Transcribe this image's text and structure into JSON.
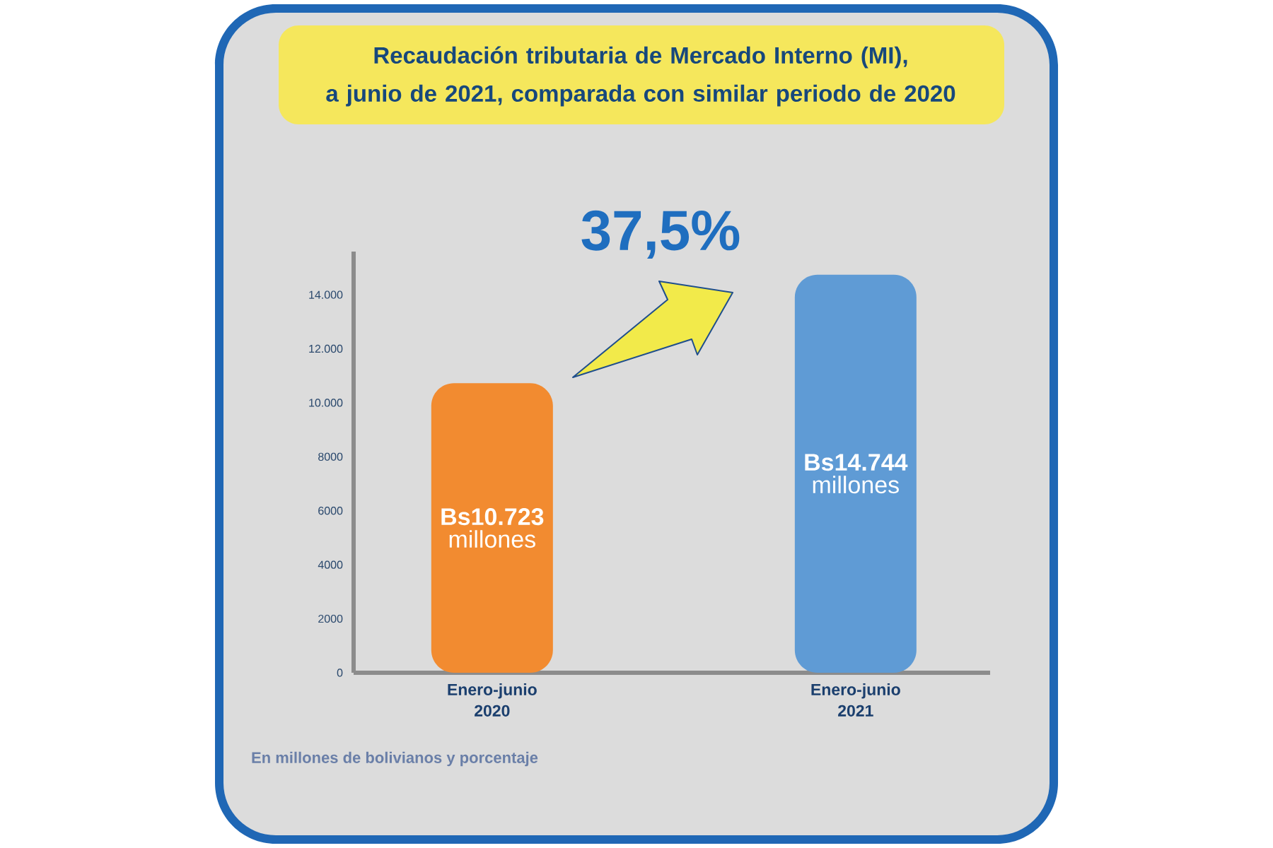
{
  "chart_data": {
    "type": "bar",
    "title": "Recaudación tributaria de Mercado Interno (MI),\na junio de 2021, comparada con similar periodo de 2020",
    "categories": [
      "Enero-junio 2020",
      "Enero-junio 2021"
    ],
    "values": [
      10723,
      14744
    ],
    "colors": [
      "#f28b30",
      "#5f9bd5"
    ],
    "value_labels": [
      "**Bs10.723** millones",
      "**Bs14.744** millones"
    ],
    "ylim": [
      0,
      15600
    ],
    "yticks": [
      0,
      2000,
      4000,
      6000,
      8000,
      {
        "value": 10000,
        "label": "10.000"
      },
      {
        "value": 12000,
        "label": "12.000"
      },
      {
        "value": 14000,
        "label": "14.000"
      }
    ],
    "annotations": [
      "37,5%",
      "En millones de bolivianos y porcentaje"
    ]
  }
}
